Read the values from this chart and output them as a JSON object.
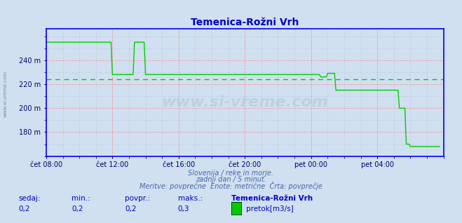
{
  "title": "Temenica-Rožni Vrh",
  "title_color": "#0000cc",
  "bg_color": "#d0e0f0",
  "plot_bg_color": "#d0e0f0",
  "line_color": "#00cc00",
  "avg_line_color": "#00cc00",
  "grid_color_red": "#ff8888",
  "grid_color_minor": "#8899bb",
  "axis_color": "#0000ff",
  "ylim": [
    160,
    266
  ],
  "yticks": [
    180,
    200,
    220,
    240
  ],
  "ytick_labels": [
    "180 m",
    "200 m",
    "220 m",
    "240 m"
  ],
  "avg_value": 224.0,
  "watermark_text": "www.si-vreme.com",
  "subtitle1": "Slovenija / reke in morje.",
  "subtitle2": "zadnji dan / 5 minut.",
  "subtitle3": "Meritve: povprečne  Enote: metrične  Črta: povprečje",
  "footer_labels": [
    "sedaj:",
    "min.:",
    "povpr.:",
    "maks.:",
    "Temenica-Rožni Vrh"
  ],
  "footer_values": [
    "0,2",
    "0,2",
    "0,2",
    "0,3"
  ],
  "legend_label": "pretok[m3/s]",
  "x_tick_labels": [
    "čet 08:00",
    "čet 12:00",
    "čet 16:00",
    "čet 20:00",
    "pet 00:00",
    "pet 04:00"
  ],
  "x_tick_positions": [
    0,
    48,
    96,
    144,
    192,
    240
  ],
  "total_points": 288,
  "data_y": [
    255,
    255,
    255,
    255,
    255,
    255,
    255,
    255,
    255,
    255,
    255,
    255,
    255,
    255,
    255,
    255,
    255,
    255,
    255,
    255,
    255,
    255,
    255,
    255,
    255,
    255,
    255,
    255,
    255,
    255,
    255,
    255,
    255,
    255,
    255,
    255,
    255,
    255,
    255,
    255,
    255,
    255,
    255,
    255,
    255,
    255,
    255,
    255,
    228,
    228,
    228,
    228,
    228,
    228,
    228,
    228,
    228,
    228,
    228,
    228,
    228,
    228,
    228,
    228,
    255,
    255,
    255,
    255,
    255,
    255,
    255,
    255,
    228,
    228,
    228,
    228,
    228,
    228,
    228,
    228,
    228,
    228,
    228,
    228,
    228,
    228,
    228,
    228,
    228,
    228,
    228,
    228,
    228,
    228,
    228,
    228,
    228,
    228,
    228,
    228,
    228,
    228,
    228,
    228,
    228,
    228,
    228,
    228,
    228,
    228,
    228,
    228,
    228,
    228,
    228,
    228,
    228,
    228,
    228,
    228,
    228,
    228,
    228,
    228,
    228,
    228,
    228,
    228,
    228,
    228,
    228,
    228,
    228,
    228,
    228,
    228,
    228,
    228,
    228,
    228,
    228,
    228,
    228,
    228,
    228,
    228,
    228,
    228,
    228,
    228,
    228,
    228,
    228,
    228,
    228,
    228,
    228,
    228,
    228,
    228,
    228,
    228,
    228,
    228,
    228,
    228,
    228,
    228,
    228,
    228,
    228,
    228,
    228,
    228,
    228,
    228,
    228,
    228,
    228,
    228,
    228,
    228,
    228,
    228,
    228,
    228,
    228,
    228,
    228,
    228,
    228,
    228,
    228,
    228,
    228,
    228,
    228,
    228,
    228,
    226,
    226,
    226,
    226,
    226,
    229,
    229,
    229,
    229,
    229,
    229,
    215,
    215,
    215,
    215,
    215,
    215,
    215,
    215,
    215,
    215,
    215,
    215,
    215,
    215,
    215,
    215,
    215,
    215,
    215,
    215,
    215,
    215,
    215,
    215,
    215,
    215,
    215,
    215,
    215,
    215,
    215,
    215,
    215,
    215,
    215,
    215,
    215,
    215,
    215,
    215,
    215,
    215,
    215,
    215,
    215,
    215,
    200,
    200,
    200,
    200,
    200,
    170,
    170,
    170,
    168,
    168,
    168,
    168,
    168,
    168,
    168,
    168,
    168,
    168,
    168,
    168,
    168,
    168,
    168,
    168,
    168,
    168,
    168,
    168,
    168,
    168
  ]
}
